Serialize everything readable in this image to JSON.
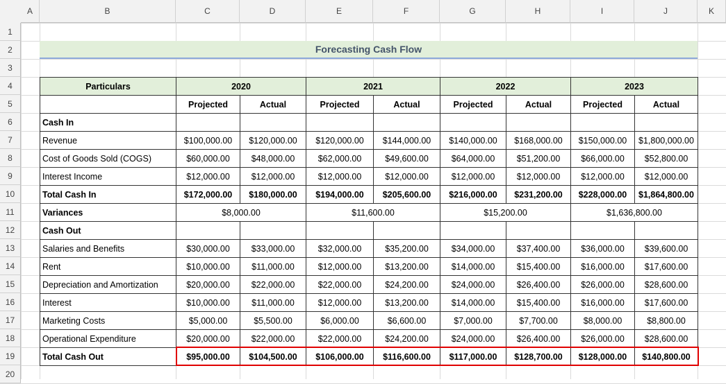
{
  "columns": [
    "A",
    "B",
    "C",
    "D",
    "E",
    "F",
    "G",
    "H",
    "I",
    "J",
    "K"
  ],
  "row_numbers": [
    1,
    2,
    3,
    4,
    5,
    6,
    7,
    8,
    9,
    10,
    11,
    12,
    13,
    14,
    15,
    16,
    17,
    18,
    19,
    20
  ],
  "title": "Forecasting Cash Flow",
  "table": {
    "header": "Particulars",
    "years": [
      "2020",
      "2021",
      "2022",
      "2023"
    ],
    "subheaders": [
      "Projected",
      "Actual",
      "Projected",
      "Actual",
      "Projected",
      "Actual",
      "Projected",
      "Actual"
    ],
    "rows": [
      [
        "Cash In"
      ],
      [
        "Revenue",
        "$100,000.00",
        "$120,000.00",
        "$120,000.00",
        "$144,000.00",
        "$140,000.00",
        "$168,000.00",
        "$150,000.00",
        "$1,800,000.00"
      ],
      [
        "Cost of Goods Sold (COGS)",
        "$60,000.00",
        "$48,000.00",
        "$62,000.00",
        "$49,600.00",
        "$64,000.00",
        "$51,200.00",
        "$66,000.00",
        "$52,800.00"
      ],
      [
        "Interest Income",
        "$12,000.00",
        "$12,000.00",
        "$12,000.00",
        "$12,000.00",
        "$12,000.00",
        "$12,000.00",
        "$12,000.00",
        "$12,000.00"
      ],
      [
        "Total Cash In",
        "$172,000.00",
        "$180,000.00",
        "$194,000.00",
        "$205,600.00",
        "$216,000.00",
        "$231,200.00",
        "$228,000.00",
        "$1,864,800.00"
      ],
      [
        "Variances",
        "$8,000.00",
        "$11,600.00",
        "$15,200.00",
        "$1,636,800.00"
      ],
      [
        "Cash Out"
      ],
      [
        "Salaries and Benefits",
        "$30,000.00",
        "$33,000.00",
        "$32,000.00",
        "$35,200.00",
        "$34,000.00",
        "$37,400.00",
        "$36,000.00",
        "$39,600.00"
      ],
      [
        "Rent",
        "$10,000.00",
        "$11,000.00",
        "$12,000.00",
        "$13,200.00",
        "$14,000.00",
        "$15,400.00",
        "$16,000.00",
        "$17,600.00"
      ],
      [
        "Depreciation and Amortization",
        "$20,000.00",
        "$22,000.00",
        "$22,000.00",
        "$24,200.00",
        "$24,000.00",
        "$26,400.00",
        "$26,000.00",
        "$28,600.00"
      ],
      [
        "Interest",
        "$10,000.00",
        "$11,000.00",
        "$12,000.00",
        "$13,200.00",
        "$14,000.00",
        "$15,400.00",
        "$16,000.00",
        "$17,600.00"
      ],
      [
        "Marketing Costs",
        "$5,000.00",
        "$5,500.00",
        "$6,000.00",
        "$6,600.00",
        "$7,000.00",
        "$7,700.00",
        "$8,000.00",
        "$8,800.00"
      ],
      [
        "Operational Expenditure",
        "$20,000.00",
        "$22,000.00",
        "$22,000.00",
        "$24,200.00",
        "$24,000.00",
        "$26,400.00",
        "$26,000.00",
        "$28,600.00"
      ],
      [
        "Total Cash Out",
        "$95,000.00",
        "$104,500.00",
        "$106,000.00",
        "$116,600.00",
        "$117,000.00",
        "$128,700.00",
        "$128,000.00",
        "$140,800.00"
      ]
    ]
  }
}
